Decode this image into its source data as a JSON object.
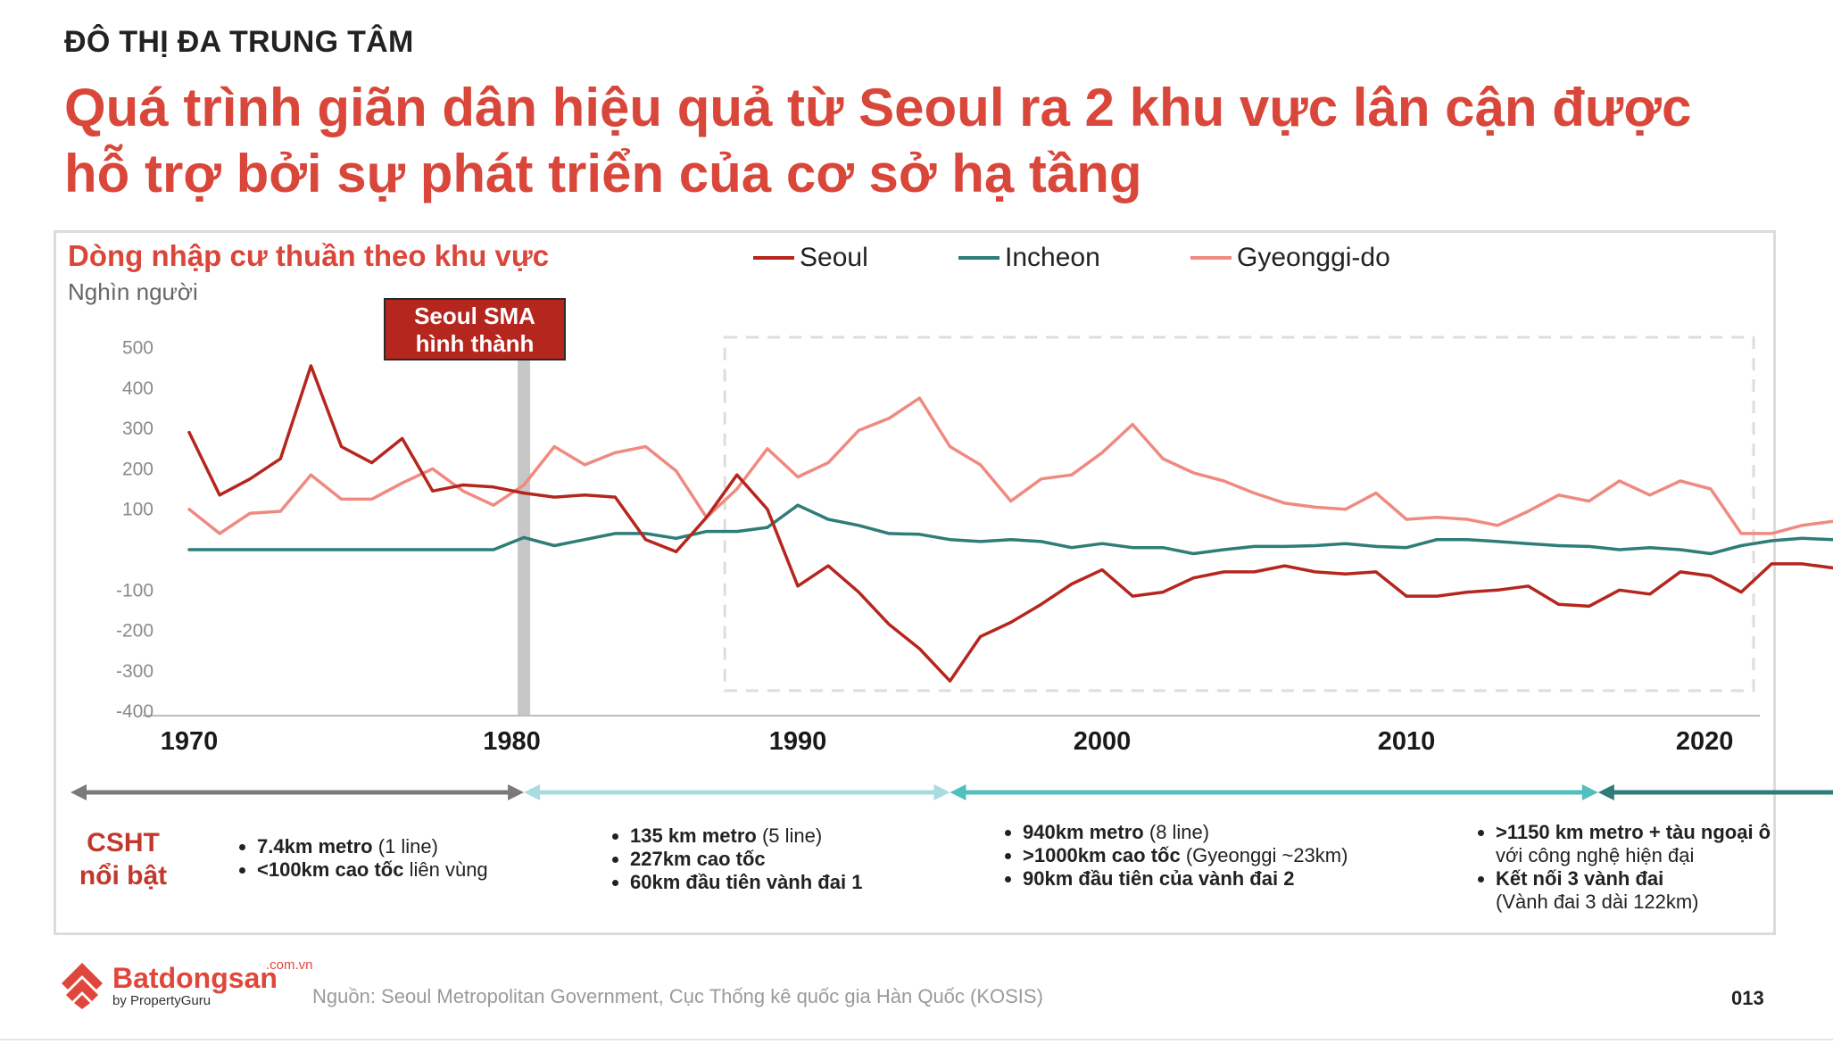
{
  "header": {
    "kicker": "ĐÔ THỊ ĐA TRUNG TÂM",
    "title": "Quá trình giãn dân hiệu quả từ Seoul ra 2 khu vực lân cận được hỗ trợ bởi sự phát triển của cơ sở hạ tầng"
  },
  "colors": {
    "accent": "#d9463a",
    "seoul": "#b5261e",
    "incheon": "#2e7d78",
    "gyeonggi": "#ef8a80",
    "period1": "#7a7a7a",
    "period2": "#a8dcdf",
    "period3": "#52bfbf",
    "period4": "#2f7c78"
  },
  "chart_data": {
    "type": "line",
    "title": "Dòng nhập cư thuần theo khu vực",
    "ylabel": "Nghìn người",
    "ylim": [
      -400,
      500
    ],
    "xlim": [
      1969,
      2024
    ],
    "y_ticks": [
      "500",
      "400",
      "300",
      "200",
      "100",
      "-100",
      "-200",
      "-300",
      "-400"
    ],
    "x_ticks": [
      "1970",
      "1980",
      "1990",
      "2000",
      "2010",
      "2020"
    ],
    "legend_position": "top",
    "grid": false,
    "annotation": {
      "label": "Seoul SMA hình thành",
      "year": 1981
    },
    "highlight_box": {
      "from": 1987.6,
      "to": 2024
    },
    "x": [
      1970,
      1971,
      1972,
      1973,
      1974,
      1975,
      1976,
      1977,
      1978,
      1979,
      1980,
      1981,
      1982,
      1983,
      1984,
      1985,
      1986,
      1987,
      1988,
      1989,
      1990,
      1991,
      1992,
      1993,
      1994,
      1995,
      1996,
      1997,
      1998,
      1999,
      2000,
      2001,
      2002,
      2003,
      2004,
      2005,
      2006,
      2007,
      2008,
      2009,
      2010,
      2011,
      2012,
      2013,
      2014,
      2015,
      2016,
      2017,
      2018,
      2019,
      2020,
      2021,
      2022,
      2023,
      2024
    ],
    "series": [
      {
        "name": "Seoul",
        "values": [
          290,
          135,
          175,
          225,
          455,
          255,
          215,
          275,
          145,
          160,
          155,
          140,
          130,
          135,
          130,
          25,
          -5,
          80,
          185,
          100,
          -90,
          -40,
          -105,
          -185,
          -245,
          -325,
          -215,
          -180,
          -135,
          -85,
          -50,
          -115,
          -105,
          -70,
          -55,
          -55,
          -40,
          -55,
          -60,
          -55,
          -115,
          -115,
          -105,
          -100,
          -90,
          -135,
          -140,
          -100,
          -110,
          -55,
          -65,
          -105,
          -35,
          -35,
          -45
        ]
      },
      {
        "name": "Incheon",
        "values": [
          0,
          0,
          0,
          0,
          0,
          0,
          0,
          0,
          0,
          0,
          0,
          30,
          10,
          25,
          40,
          40,
          28,
          45,
          45,
          55,
          110,
          75,
          60,
          40,
          38,
          25,
          20,
          25,
          20,
          5,
          15,
          5,
          5,
          -10,
          0,
          8,
          8,
          10,
          15,
          8,
          5,
          25,
          25,
          20,
          15,
          10,
          8,
          0,
          5,
          0,
          -10,
          10,
          22,
          28,
          25
        ]
      },
      {
        "name": "Gyeonggi-do",
        "values": [
          100,
          40,
          90,
          95,
          185,
          125,
          125,
          165,
          200,
          145,
          110,
          160,
          255,
          210,
          240,
          255,
          195,
          80,
          150,
          250,
          180,
          215,
          295,
          325,
          375,
          255,
          210,
          120,
          175,
          185,
          240,
          310,
          225,
          190,
          170,
          140,
          115,
          105,
          100,
          140,
          75,
          80,
          75,
          60,
          95,
          135,
          120,
          170,
          135,
          170,
          150,
          40,
          40,
          60,
          70
        ]
      }
    ]
  },
  "legend": [
    {
      "name": "Seoul"
    },
    {
      "name": "Incheon"
    },
    {
      "name": "Gyeonggi-do"
    }
  ],
  "callout": {
    "line1": "Seoul SMA",
    "line2": "hình thành"
  },
  "infrastructure": {
    "label_line1": "CSHT",
    "label_line2": "nổi bật",
    "periods": [
      {
        "start": 1966.1,
        "end": 1981.0,
        "color": "#7a7a7a"
      },
      {
        "start": 1981.0,
        "end": 1995.0,
        "color": "#a8dcdf"
      },
      {
        "start": 1995.0,
        "end": 2016.3,
        "color": "#52bfbf"
      },
      {
        "start": 2016.3,
        "end": 2029.6,
        "color": "#2f7c78"
      }
    ],
    "col1": {
      "b1_bold": "7.4km metro",
      "b1_rest": " (1 line)",
      "b2_bold": "<100km cao tốc",
      "b2_rest": " liên vùng"
    },
    "col2": {
      "b1_bold": "135 km metro",
      "b1_rest": " (5 line)",
      "b2_bold": "227km cao tốc",
      "b3_bold": "60km đầu tiên vành đai 1"
    },
    "col3": {
      "b1_bold": "940km metro",
      "b1_rest": " (8 line)",
      "b2_bold": ">1000km cao tốc",
      "b2_rest": " (Gyeonggi ~23km)",
      "b3_bold": "90km đầu tiên của vành đai 2"
    },
    "col4": {
      "b1_bold": ">1150 km metro + tàu ngoại ô",
      "b1_rest": "với công nghệ hiện đại",
      "b2_bold": "Kết nối 3 vành đai",
      "b2_rest": "(Vành đai 3 dài 122km)"
    }
  },
  "footer": {
    "brand": "Batdongsan",
    "brand_domain": ".com.vn",
    "brand_sub": "by PropertyGuru",
    "source": "Nguồn: Seoul Metropolitan Government, Cục Thống kê quốc gia Hàn Quốc (KOSIS)",
    "page_number": "013"
  }
}
